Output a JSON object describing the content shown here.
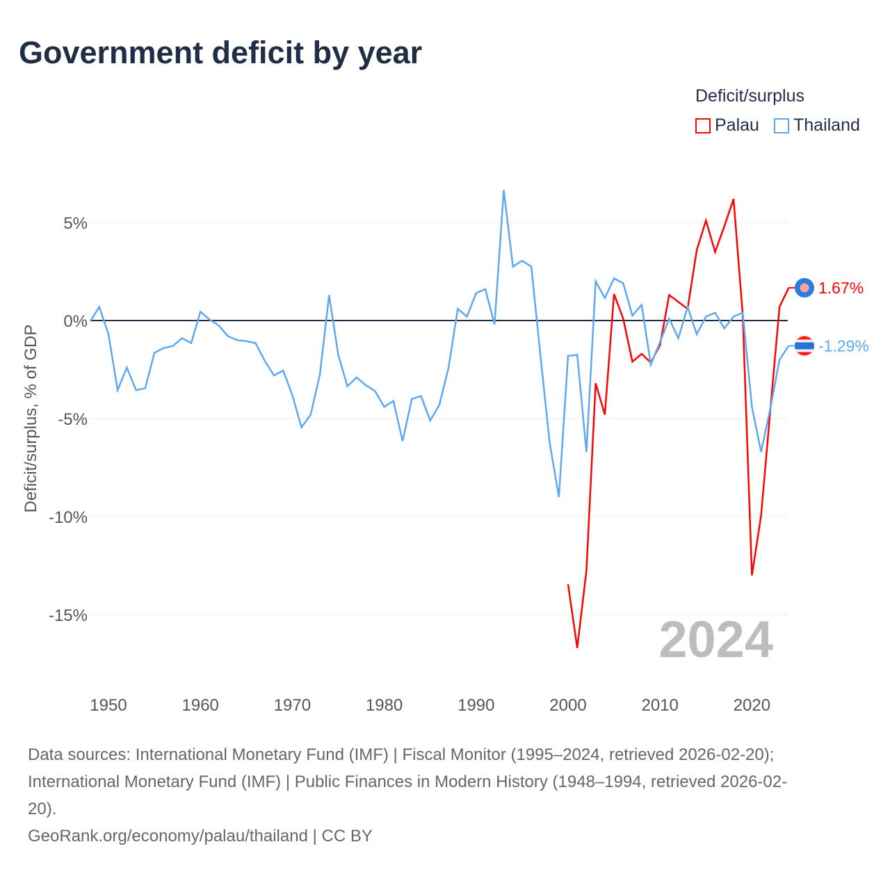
{
  "title": "Government deficit by year",
  "legend": {
    "title": "Deficit/surplus",
    "items": [
      {
        "name": "Palau",
        "color": "#ff0000"
      },
      {
        "name": "Thailand",
        "color": "#5fa8f0"
      }
    ]
  },
  "chart_data": {
    "type": "line",
    "title": "Government deficit by year",
    "ylabel": "Deficit/surplus, % of GDP",
    "xlabel": "",
    "xlim": [
      1948,
      2024
    ],
    "ylim": [
      -17.5,
      7.5
    ],
    "x_ticks": [
      1950,
      1960,
      1970,
      1980,
      1990,
      2000,
      2010,
      2020
    ],
    "y_ticks": [
      {
        "v": 5,
        "label": "5%"
      },
      {
        "v": 0,
        "label": "0%"
      },
      {
        "v": -5,
        "label": "-5%"
      },
      {
        "v": -10,
        "label": "-10%"
      },
      {
        "v": -15,
        "label": "-15%"
      }
    ],
    "year_watermark": "2024",
    "series": [
      {
        "name": "Thailand",
        "color": "#5fa8f0",
        "start": 1948,
        "end_label": "-1.29%",
        "values": [
          -0.05,
          0.7,
          -0.7,
          -3.55,
          -2.4,
          -3.55,
          -3.45,
          -1.65,
          -1.4,
          -1.3,
          -0.9,
          -1.15,
          0.45,
          0.05,
          -0.25,
          -0.8,
          -1.0,
          -1.05,
          -1.15,
          -2.05,
          -2.8,
          -2.55,
          -3.8,
          -5.45,
          -4.8,
          -2.75,
          1.3,
          -1.75,
          -3.35,
          -2.9,
          -3.3,
          -3.6,
          -4.4,
          -4.1,
          -6.15,
          -4.0,
          -3.85,
          -5.1,
          -4.3,
          -2.4,
          0.6,
          0.2,
          1.4,
          1.6,
          -0.2,
          6.65,
          2.75,
          3.05,
          2.75,
          -1.8,
          -6.25,
          -9.0,
          -1.8,
          -1.75,
          -6.7,
          2.0,
          1.15,
          2.15,
          1.9,
          0.25,
          0.8,
          -2.25,
          -1.1,
          0.1,
          -0.9,
          0.7,
          -0.7,
          0.2,
          0.4,
          -0.4,
          0.2,
          0.4,
          -4.4,
          -6.7,
          -4.5,
          -2.0,
          -1.29
        ]
      },
      {
        "name": "Palau",
        "color": "#ff0000",
        "start": 2000,
        "end_label": "1.67%",
        "values": [
          -13.45,
          -16.7,
          -12.75,
          -3.2,
          -4.8,
          1.35,
          0.1,
          -2.1,
          -1.7,
          -2.15,
          -1.25,
          1.3,
          0.95,
          0.6,
          3.6,
          5.1,
          3.5,
          4.8,
          6.2,
          0.3,
          -13.0,
          -9.95,
          -4.6,
          0.7,
          1.67
        ]
      }
    ]
  },
  "sources": {
    "line1": "Data sources: International Monetary Fund (IMF) | Fiscal Monitor (1995–2024, retrieved 2026-02-20);",
    "line2": "International Monetary Fund (IMF) | Public Finances in Modern History (1948–1994, retrieved 2026-02-",
    "line3": "20).",
    "credit": "GeoRank.org/economy/palau/thailand | CC BY"
  }
}
